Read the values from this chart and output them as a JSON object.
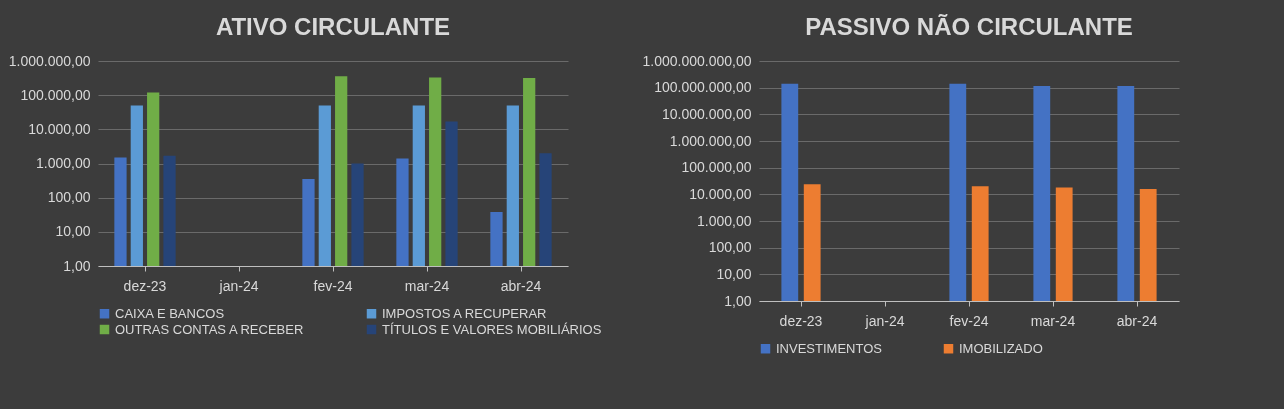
{
  "chart_data": [
    {
      "type": "bar",
      "title": "ATIVO CIRCULANTE",
      "categories": [
        "dez-23",
        "jan-24",
        "fev-24",
        "mar-24",
        "abr-24"
      ],
      "log": true,
      "grid": "y",
      "legend": "bottom",
      "ylim": [
        1,
        1000000
      ],
      "yticks": [
        {
          "value": 1,
          "label": "1,00"
        },
        {
          "value": 10,
          "label": "10,00"
        },
        {
          "value": 100,
          "label": "100,00"
        },
        {
          "value": 1000,
          "label": "1.000,00"
        },
        {
          "value": 10000,
          "label": "10.000,00"
        },
        {
          "value": 100000,
          "label": "100.000,00"
        },
        {
          "value": 1000000,
          "label": "1.000.000,00"
        }
      ],
      "series": [
        {
          "name": "CAIXA E BANCOS",
          "color": "#4472c4",
          "values": [
            1500,
            null,
            350,
            1400,
            38
          ]
        },
        {
          "name": "IMPOSTOS A RECUPERAR",
          "color": "#5b9bd5",
          "values": [
            50000,
            null,
            50000,
            50000,
            50000
          ]
        },
        {
          "name": "OUTRAS CONTAS A RECEBER",
          "color": "#70ad47",
          "values": [
            120000,
            null,
            360000,
            330000,
            320000
          ]
        },
        {
          "name": "TÍTULOS E VALORES MOBILIÁRIOS",
          "color": "#264478",
          "values": [
            1700,
            null,
            1000,
            17000,
            2000
          ]
        }
      ]
    },
    {
      "type": "bar",
      "title": "PASSIVO NÃO CIRCULANTE",
      "categories": [
        "dez-23",
        "jan-24",
        "fev-24",
        "mar-24",
        "abr-24"
      ],
      "log": true,
      "grid": "y",
      "legend": "bottom",
      "ylim": [
        1,
        1000000000
      ],
      "yticks": [
        {
          "value": 1,
          "label": "1,00"
        },
        {
          "value": 10,
          "label": "10,00"
        },
        {
          "value": 100,
          "label": "100,00"
        },
        {
          "value": 1000,
          "label": "1.000,00"
        },
        {
          "value": 10000,
          "label": "10.000,00"
        },
        {
          "value": 100000,
          "label": "100.000,00"
        },
        {
          "value": 1000000,
          "label": "1.000.000,00"
        },
        {
          "value": 10000000,
          "label": "10.000.000,00"
        },
        {
          "value": 100000000,
          "label": "100.000.000,00"
        },
        {
          "value": 1000000000,
          "label": "1.000.000.000,00"
        }
      ],
      "series": [
        {
          "name": "INVESTIMENTOS",
          "color": "#4472c4",
          "values": [
            140000000,
            null,
            140000000,
            115000000,
            115000000
          ]
        },
        {
          "name": "IMOBILIZADO",
          "color": "#ed7d31",
          "values": [
            24000,
            null,
            20000,
            18000,
            16000
          ]
        }
      ]
    }
  ]
}
